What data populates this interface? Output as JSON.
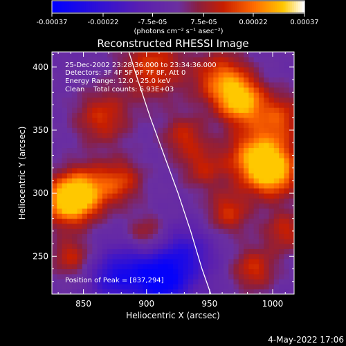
{
  "chart_data": {
    "type": "heatmap",
    "title": "Reconstructed RHESSI Image",
    "xlabel": "Heliocentric X (arcsec)",
    "ylabel": "Heliocentric Y (arcsec)",
    "xlim": [
      825,
      1017
    ],
    "ylim": [
      220,
      412
    ],
    "x_ticks": [
      850,
      900,
      950,
      1000
    ],
    "y_ticks": [
      250,
      300,
      350,
      400
    ],
    "colorbar": {
      "range": [
        -0.00037,
        0.00037
      ],
      "tick_values": [
        -0.00037,
        -0.00022,
        -7.5e-05,
        7.5e-05,
        0.00022,
        0.00037
      ],
      "tick_labels": [
        "-0.00037",
        "-0.00022",
        "-7.5e-05",
        "7.5e-05",
        "0.00022",
        "0.00037"
      ],
      "units_label": "(photons cm⁻² s⁻¹ asec⁻²)",
      "colors": [
        "#0000ff",
        "#5a1fb0",
        "#6b2fa0",
        "#8a1f40",
        "#c81e00",
        "#ff6a00",
        "#ffc800",
        "#ffffff"
      ]
    },
    "annotations": [
      "25-Dec-2002 23:28:36.000 to 23:34:36.000",
      "Detectors: 3F 4F 5F 6F 7F 8F, Att 0",
      "Energy Range: 12.0 - 25.0 keV",
      "Clean    Total counts: 6.93E+03"
    ],
    "peak_label": "Position of Peak = [837,294]",
    "peak": [
      837,
      294
    ],
    "limb_curve": {
      "x": [
        886,
        893,
        903,
        914,
        925,
        935,
        944,
        951
      ],
      "y": [
        412,
        390,
        360,
        330,
        300,
        270,
        240,
        220
      ]
    },
    "hot_spots": [
      {
        "x": 837,
        "y": 294,
        "intensity": 1.0,
        "radius": 13
      },
      {
        "x": 853,
        "y": 302,
        "intensity": 0.7,
        "radius": 14
      },
      {
        "x": 1000,
        "y": 318,
        "intensity": 0.95,
        "radius": 14
      },
      {
        "x": 985,
        "y": 330,
        "intensity": 0.7,
        "radius": 16
      },
      {
        "x": 975,
        "y": 373,
        "intensity": 0.9,
        "radius": 12
      },
      {
        "x": 960,
        "y": 390,
        "intensity": 0.7,
        "radius": 15
      },
      {
        "x": 1005,
        "y": 360,
        "intensity": 0.55,
        "radius": 14
      },
      {
        "x": 905,
        "y": 400,
        "intensity": 0.55,
        "radius": 18
      },
      {
        "x": 865,
        "y": 360,
        "intensity": 0.5,
        "radius": 15
      },
      {
        "x": 930,
        "y": 345,
        "intensity": 0.45,
        "radius": 12
      },
      {
        "x": 900,
        "y": 265,
        "intensity": 0.55,
        "radius": 12
      },
      {
        "x": 880,
        "y": 310,
        "intensity": 0.5,
        "radius": 12
      },
      {
        "x": 965,
        "y": 285,
        "intensity": 0.5,
        "radius": 12
      },
      {
        "x": 1010,
        "y": 270,
        "intensity": 0.45,
        "radius": 12
      },
      {
        "x": 985,
        "y": 240,
        "intensity": 0.5,
        "radius": 12
      },
      {
        "x": 945,
        "y": 320,
        "intensity": 0.4,
        "radius": 12
      },
      {
        "x": 840,
        "y": 250,
        "intensity": 0.45,
        "radius": 11
      }
    ],
    "cold_spots": [
      {
        "x": 895,
        "y": 240,
        "intensity": -0.75,
        "radius": 18
      },
      {
        "x": 930,
        "y": 250,
        "intensity": -0.6,
        "radius": 16
      },
      {
        "x": 915,
        "y": 225,
        "intensity": -0.6,
        "radius": 14
      },
      {
        "x": 870,
        "y": 232,
        "intensity": -0.45,
        "radius": 12
      }
    ]
  },
  "footer": {
    "date": "4-May-2022 17:06"
  }
}
